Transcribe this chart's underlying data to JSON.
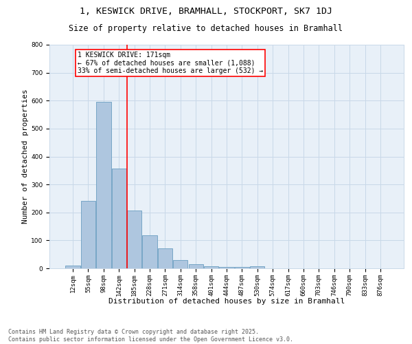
{
  "title_line1": "1, KESWICK DRIVE, BRAMHALL, STOCKPORT, SK7 1DJ",
  "title_line2": "Size of property relative to detached houses in Bramhall",
  "xlabel": "Distribution of detached houses by size in Bramhall",
  "ylabel": "Number of detached properties",
  "bar_labels": [
    "12sqm",
    "55sqm",
    "98sqm",
    "142sqm",
    "185sqm",
    "228sqm",
    "271sqm",
    "314sqm",
    "358sqm",
    "401sqm",
    "444sqm",
    "487sqm",
    "530sqm",
    "574sqm",
    "617sqm",
    "660sqm",
    "703sqm",
    "746sqm",
    "790sqm",
    "833sqm",
    "876sqm"
  ],
  "bar_values": [
    10,
    242,
    595,
    357,
    207,
    117,
    72,
    29,
    15,
    8,
    5,
    6,
    8,
    0,
    0,
    0,
    0,
    0,
    0,
    0,
    0
  ],
  "bar_color": "#aec6df",
  "bar_edge_color": "#6a9ec0",
  "grid_color": "#c8d8e8",
  "background_color": "#e8f0f8",
  "vline_color": "red",
  "annotation_text": "1 KESWICK DRIVE: 171sqm\n← 67% of detached houses are smaller (1,088)\n33% of semi-detached houses are larger (532) →",
  "ylim": [
    0,
    800
  ],
  "yticks": [
    0,
    100,
    200,
    300,
    400,
    500,
    600,
    700,
    800
  ],
  "footer_line1": "Contains HM Land Registry data © Crown copyright and database right 2025.",
  "footer_line2": "Contains public sector information licensed under the Open Government Licence v3.0.",
  "title_fontsize": 9.5,
  "subtitle_fontsize": 8.5,
  "axis_label_fontsize": 8,
  "tick_fontsize": 6.5,
  "annotation_fontsize": 7,
  "footer_fontsize": 6
}
